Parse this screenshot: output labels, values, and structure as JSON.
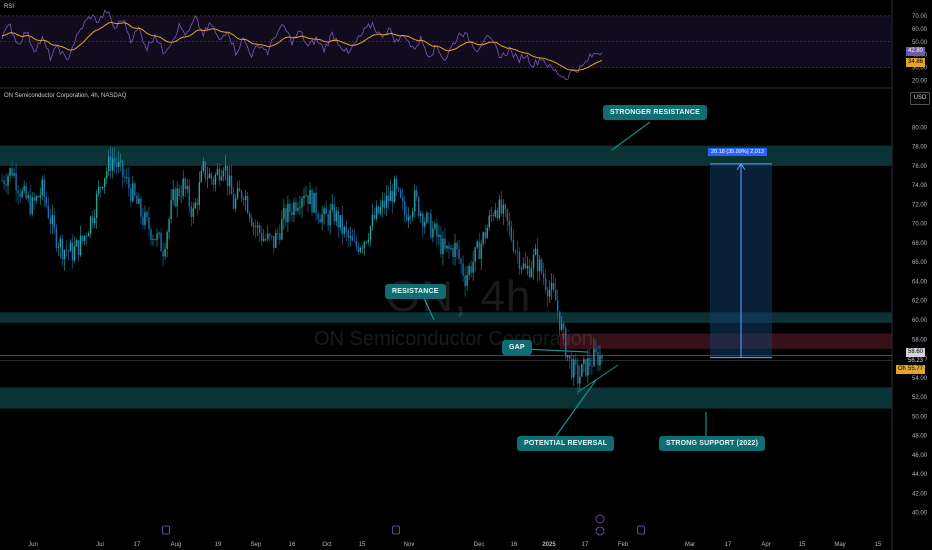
{
  "header": {
    "symbol_line": "ON Semiconductor Corporation, 4h, NASDAQ",
    "currency": "USD",
    "rsi_label": "RSI"
  },
  "watermark": {
    "ticker": "ON, 4h",
    "company": "ON Semiconductor Corporation"
  },
  "annotations": {
    "stronger_resistance": "STRONGER RESISTANCE",
    "resistance": "RESISTANCE",
    "gap": "GAP",
    "potential_reversal": "POTENTIAL REVERSAL",
    "strong_support": "STRONG SUPPORT (2022)"
  },
  "measure": {
    "label": "20.18 (35.99%) 2,013"
  },
  "price_tags": {
    "last": "58.60",
    "mid": "56.23",
    "current": "55.77",
    "current_prefix": "ON"
  },
  "rsi_tags": {
    "rsi": "42.80",
    "ma": "34.86"
  },
  "colors": {
    "up": "#26a69a",
    "down": "#1f6fb2",
    "zone": "#0d3b3d",
    "rsi_line": "#7e57c2",
    "rsi_ma": "#e0a52c",
    "annotation_bg": "#0f6e73"
  },
  "chart_data": {
    "type": "candlestick",
    "price_axis": {
      "ylim": [
        38,
        82
      ],
      "ticks": [
        "40.00",
        "42.00",
        "44.00",
        "46.00",
        "48.00",
        "50.00",
        "52.00",
        "54.00",
        "56.00",
        "58.00",
        "60.00",
        "62.00",
        "64.00",
        "66.00",
        "68.00",
        "70.00",
        "72.00",
        "74.00",
        "76.00",
        "78.00",
        "80.00"
      ]
    },
    "rsi_axis": {
      "ylim": [
        15,
        80
      ],
      "ticks": [
        "20.00",
        "30.00",
        "40.00",
        "50.00",
        "60.00",
        "70.00"
      ],
      "bands": [
        30,
        70
      ]
    },
    "time_axis": [
      "Jun",
      "Jul",
      "17",
      "Aug",
      "19",
      "Sep",
      "16",
      "Oct",
      "15",
      "Nov",
      "Dec",
      "16",
      "2025",
      "17",
      "Feb",
      "Mar",
      "17",
      "Apr",
      "15",
      "May",
      "15"
    ],
    "zones": [
      {
        "name": "stronger-resistance",
        "low": 76.0,
        "high": 78.1
      },
      {
        "name": "resistance",
        "low": 59.7,
        "high": 60.8
      },
      {
        "name": "strong-support",
        "low": 50.8,
        "high": 53.0
      }
    ],
    "gap": {
      "low": 57.0,
      "high": 58.6
    },
    "projection": {
      "from": 56.1,
      "to": 76.2,
      "change": "20.18",
      "percent": "35.99%",
      "bars": "2,013"
    },
    "price_path": [
      [
        0,
        74.5
      ],
      [
        5,
        75.6
      ],
      [
        10,
        73.0
      ],
      [
        15,
        71.8
      ],
      [
        20,
        73.5
      ],
      [
        26,
        69.0
      ],
      [
        30,
        67.5
      ],
      [
        35,
        67.0
      ],
      [
        40,
        68.2
      ],
      [
        45,
        71.0
      ],
      [
        50,
        74.8
      ],
      [
        55,
        76.8
      ],
      [
        60,
        75.0
      ],
      [
        65,
        73.0
      ],
      [
        70,
        70.5
      ],
      [
        75,
        69.0
      ],
      [
        80,
        67.5
      ],
      [
        85,
        72.5
      ],
      [
        90,
        74.0
      ],
      [
        95,
        71.0
      ],
      [
        100,
        75.5
      ],
      [
        105,
        74.5
      ],
      [
        110,
        76.5
      ],
      [
        115,
        72.0
      ],
      [
        120,
        73.5
      ],
      [
        125,
        70.0
      ],
      [
        130,
        68.5
      ],
      [
        135,
        68.0
      ],
      [
        140,
        70.5
      ],
      [
        145,
        72.0
      ],
      [
        150,
        73.5
      ],
      [
        155,
        72.0
      ],
      [
        160,
        70.5
      ],
      [
        165,
        71.0
      ],
      [
        170,
        69.0
      ],
      [
        175,
        67.5
      ],
      [
        180,
        68.5
      ],
      [
        185,
        70.5
      ],
      [
        190,
        72.0
      ],
      [
        195,
        73.5
      ],
      [
        200,
        71.0
      ],
      [
        205,
        72.5
      ],
      [
        210,
        70.5
      ],
      [
        215,
        69.0
      ],
      [
        220,
        67.0
      ],
      [
        225,
        67.5
      ],
      [
        230,
        64.5
      ],
      [
        235,
        66.5
      ],
      [
        240,
        69.0
      ],
      [
        245,
        72.0
      ],
      [
        250,
        70.5
      ],
      [
        255,
        67.5
      ],
      [
        260,
        65.0
      ],
      [
        265,
        66.5
      ],
      [
        270,
        64.0
      ],
      [
        275,
        62.0
      ],
      [
        279,
        58.0
      ],
      [
        282,
        55.5
      ],
      [
        286,
        54.0
      ],
      [
        290,
        55.2
      ],
      [
        294,
        56.0
      ],
      [
        298,
        56.3
      ]
    ],
    "rsi_path": [
      [
        0,
        55
      ],
      [
        4,
        62
      ],
      [
        8,
        48
      ],
      [
        12,
        58
      ],
      [
        16,
        44
      ],
      [
        20,
        52
      ],
      [
        24,
        38
      ],
      [
        28,
        46
      ],
      [
        32,
        35
      ],
      [
        36,
        50
      ],
      [
        40,
        62
      ],
      [
        44,
        70
      ],
      [
        48,
        66
      ],
      [
        52,
        74
      ],
      [
        56,
        60
      ],
      [
        60,
        68
      ],
      [
        64,
        52
      ],
      [
        68,
        60
      ],
      [
        72,
        45
      ],
      [
        76,
        56
      ],
      [
        80,
        42
      ],
      [
        84,
        50
      ],
      [
        88,
        62
      ],
      [
        92,
        55
      ],
      [
        96,
        68
      ],
      [
        100,
        56
      ],
      [
        104,
        64
      ],
      [
        108,
        50
      ],
      [
        112,
        60
      ],
      [
        116,
        42
      ],
      [
        120,
        52
      ],
      [
        124,
        40
      ],
      [
        128,
        48
      ],
      [
        132,
        42
      ],
      [
        136,
        56
      ],
      [
        140,
        62
      ],
      [
        144,
        50
      ],
      [
        148,
        58
      ],
      [
        152,
        46
      ],
      [
        156,
        52
      ],
      [
        160,
        44
      ],
      [
        164,
        56
      ],
      [
        168,
        48
      ],
      [
        172,
        40
      ],
      [
        176,
        50
      ],
      [
        180,
        58
      ],
      [
        184,
        64
      ],
      [
        188,
        54
      ],
      [
        192,
        60
      ],
      [
        196,
        50
      ],
      [
        200,
        56
      ],
      [
        204,
        44
      ],
      [
        208,
        52
      ],
      [
        212,
        40
      ],
      [
        216,
        46
      ],
      [
        220,
        36
      ],
      [
        224,
        48
      ],
      [
        228,
        58
      ],
      [
        232,
        52
      ],
      [
        236,
        44
      ],
      [
        240,
        54
      ],
      [
        244,
        48
      ],
      [
        248,
        38
      ],
      [
        252,
        44
      ],
      [
        256,
        36
      ],
      [
        260,
        40
      ],
      [
        264,
        32
      ],
      [
        268,
        38
      ],
      [
        272,
        30
      ],
      [
        276,
        26
      ],
      [
        280,
        22
      ],
      [
        284,
        28
      ],
      [
        288,
        30
      ],
      [
        292,
        38
      ],
      [
        296,
        42
      ]
    ]
  }
}
